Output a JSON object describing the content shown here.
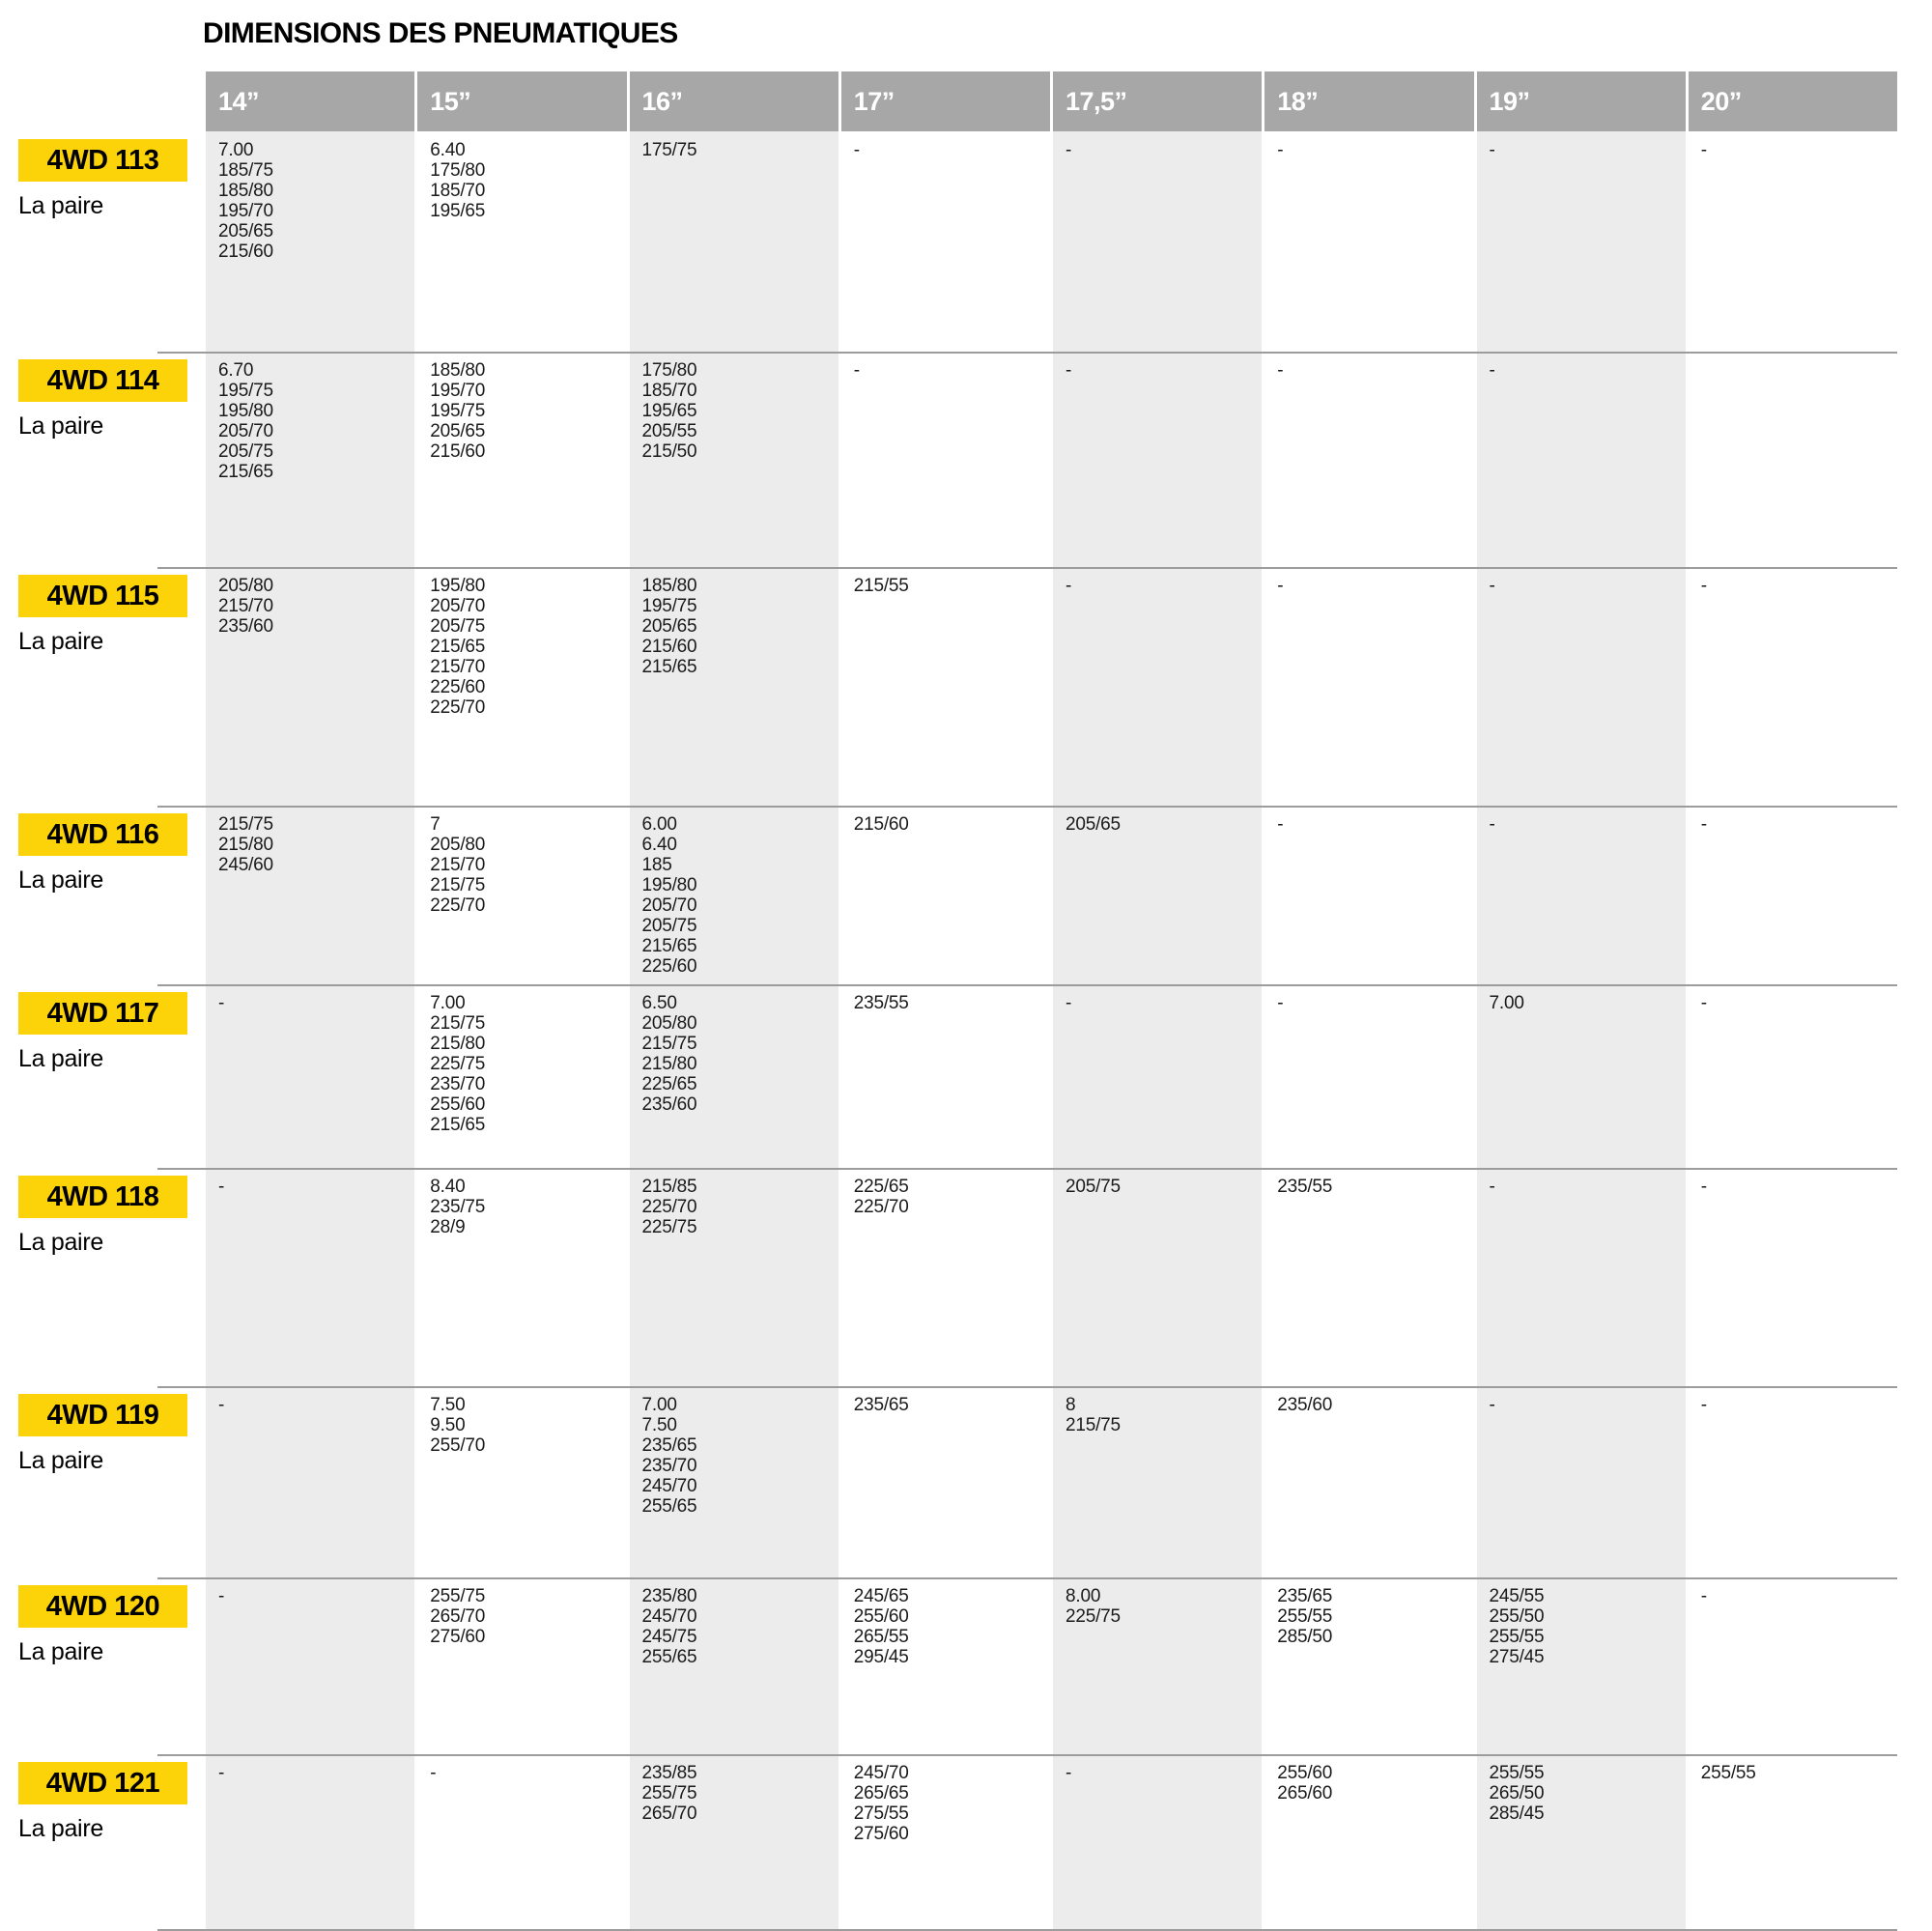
{
  "title": "DIMENSIONS DES PNEUMATIQUES",
  "colors": {
    "accent_yellow": "#FCD308",
    "header_gray": "#A7A7A7",
    "column_shade": "#ECECEC",
    "divider_gray": "#9C9C9C",
    "text_black": "#1A1A1A"
  },
  "table": {
    "columns": [
      "14”",
      "15”",
      "16”",
      "17”",
      "17,5”",
      "18”",
      "19”",
      "20”"
    ],
    "rows": [
      {
        "model": "4WD 113",
        "pack": "La paire",
        "cells": [
          [
            "7.00",
            "185/75",
            "185/80",
            "195/70",
            "205/65",
            "215/60"
          ],
          [
            "6.40",
            "175/80",
            "185/70",
            "195/65"
          ],
          [
            "175/75"
          ],
          [
            "-"
          ],
          [
            "-"
          ],
          [
            "-"
          ],
          [
            "-"
          ],
          [
            "-"
          ]
        ]
      },
      {
        "model": "4WD 114",
        "pack": "La paire",
        "cells": [
          [
            "6.70",
            "195/75",
            "195/80",
            "205/70",
            "205/75",
            "215/65"
          ],
          [
            "185/80",
            "195/70",
            "195/75",
            "205/65",
            "215/60"
          ],
          [
            "175/80",
            "185/70",
            "195/65",
            "205/55",
            "215/50"
          ],
          [
            "-"
          ],
          [
            "-"
          ],
          [
            "-"
          ],
          [
            "-"
          ],
          []
        ]
      },
      {
        "model": "4WD 115",
        "pack": "La paire",
        "cells": [
          [
            "205/80",
            "215/70",
            "235/60"
          ],
          [
            "195/80",
            "205/70",
            "205/75",
            "215/65",
            "215/70",
            "225/60",
            "225/70"
          ],
          [
            "185/80",
            "195/75",
            "205/65",
            "215/60",
            "215/65"
          ],
          [
            "215/55"
          ],
          [
            "-"
          ],
          [
            "-"
          ],
          [
            "-"
          ],
          [
            "-"
          ]
        ]
      },
      {
        "model": "4WD 116",
        "pack": "La paire",
        "cells": [
          [
            "215/75",
            "215/80",
            "245/60"
          ],
          [
            "7",
            "205/80",
            "215/70",
            "215/75",
            "225/70"
          ],
          [
            "6.00",
            "6.40",
            "185",
            "195/80",
            "205/70",
            "205/75",
            "215/65",
            "225/60"
          ],
          [
            "215/60"
          ],
          [
            "205/65"
          ],
          [
            "-"
          ],
          [
            "-"
          ],
          [
            "-"
          ]
        ]
      },
      {
        "model": "4WD 117",
        "pack": "La paire",
        "cells": [
          [
            "-"
          ],
          [
            "7.00",
            "215/75",
            "215/80",
            "225/75",
            "235/70",
            "255/60",
            "215/65"
          ],
          [
            "6.50",
            "205/80",
            "215/75",
            "215/80",
            "225/65",
            "235/60"
          ],
          [
            "235/55"
          ],
          [
            "-"
          ],
          [
            "-"
          ],
          [
            "7.00"
          ],
          [
            "-"
          ]
        ]
      },
      {
        "model": "4WD 118",
        "pack": "La paire",
        "cells": [
          [
            "-"
          ],
          [
            "8.40",
            "235/75",
            "28/9"
          ],
          [
            "215/85",
            "225/70",
            "225/75"
          ],
          [
            "225/65",
            "225/70"
          ],
          [
            "205/75"
          ],
          [
            "235/55"
          ],
          [
            "-"
          ],
          [
            "-"
          ]
        ]
      },
      {
        "model": "4WD 119",
        "pack": "La paire",
        "cells": [
          [
            "-"
          ],
          [
            "7.50",
            "9.50",
            "255/70"
          ],
          [
            "7.00",
            "7.50",
            "235/65",
            "235/70",
            "245/70",
            "255/65"
          ],
          [
            "235/65"
          ],
          [
            "8",
            "215/75"
          ],
          [
            "235/60"
          ],
          [
            "-"
          ],
          [
            "-"
          ]
        ]
      },
      {
        "model": "4WD 120",
        "pack": "La paire",
        "cells": [
          [
            "-"
          ],
          [
            "255/75",
            "265/70",
            "275/60"
          ],
          [
            "235/80",
            "245/70",
            "245/75",
            "255/65"
          ],
          [
            "245/65",
            "255/60",
            "265/55",
            "295/45"
          ],
          [
            "8.00",
            "225/75"
          ],
          [
            "235/65",
            "255/55",
            "285/50"
          ],
          [
            "245/55",
            "255/50",
            "255/55",
            "275/45"
          ],
          [
            "-"
          ]
        ]
      },
      {
        "model": "4WD 121",
        "pack": "La paire",
        "cells": [
          [
            "-"
          ],
          [
            "-"
          ],
          [
            "235/85",
            "255/75",
            "265/70"
          ],
          [
            "245/70",
            "265/65",
            "275/55",
            "275/60"
          ],
          [
            "-"
          ],
          [
            "255/60",
            "265/60"
          ],
          [
            "255/55",
            "265/50",
            "285/45"
          ],
          [
            "255/55"
          ]
        ]
      }
    ]
  }
}
